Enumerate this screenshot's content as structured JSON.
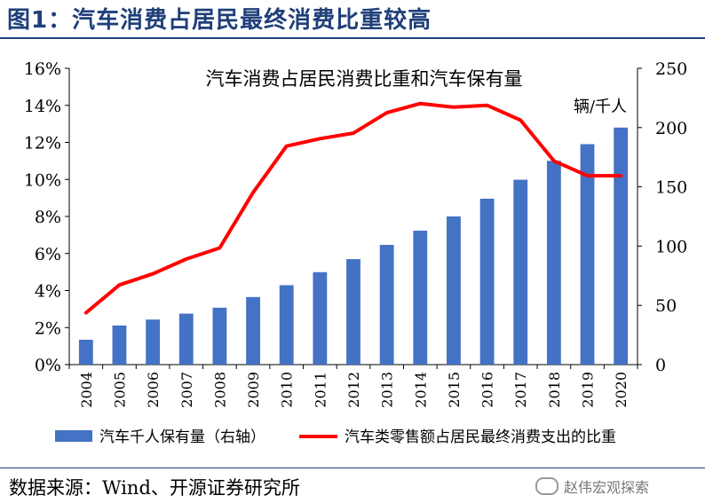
{
  "figure_title": "图1：汽车消费占居民最终消费比重较高",
  "source": "数据来源：Wind、开源证券研究所",
  "watermark": "赵伟宏观探索",
  "watermark_icon": "wechat-icon",
  "colors": {
    "bar": "#4472c4",
    "line": "#ff0000",
    "title": "#1f3f7a"
  },
  "chart_data": {
    "type": "bar",
    "title": "汽车消费占居民消费比重和汽车保有量",
    "categories": [
      "2004",
      "2005",
      "2006",
      "2007",
      "2008",
      "2009",
      "2010",
      "2011",
      "2012",
      "2013",
      "2014",
      "2015",
      "2016",
      "2017",
      "2018",
      "2019",
      "2020"
    ],
    "y_left": {
      "ticks": [
        "0%",
        "2%",
        "4%",
        "6%",
        "8%",
        "10%",
        "12%",
        "14%",
        "16%"
      ],
      "ylim": [
        0,
        0.16
      ]
    },
    "y_right": {
      "ticks": [
        "0",
        "50",
        "100",
        "150",
        "200",
        "250"
      ],
      "ylim": [
        0,
        250
      ],
      "unit_label": "辆/千人"
    },
    "series": [
      {
        "name": "汽车千人保有量（右轴）",
        "type": "bar",
        "axis": "right",
        "values": [
          21,
          33,
          38,
          43,
          48,
          57,
          67,
          78,
          89,
          101,
          113,
          125,
          140,
          156,
          172,
          186,
          200
        ]
      },
      {
        "name": "汽车类零售额占居民最终消费支出的比重",
        "type": "line",
        "axis": "left",
        "values": [
          0.028,
          0.043,
          0.049,
          0.057,
          0.063,
          0.093,
          0.118,
          0.122,
          0.125,
          0.136,
          0.141,
          0.139,
          0.14,
          0.132,
          0.11,
          0.102,
          0.102
        ]
      }
    ],
    "legend_position": "bottom",
    "grid": false
  }
}
